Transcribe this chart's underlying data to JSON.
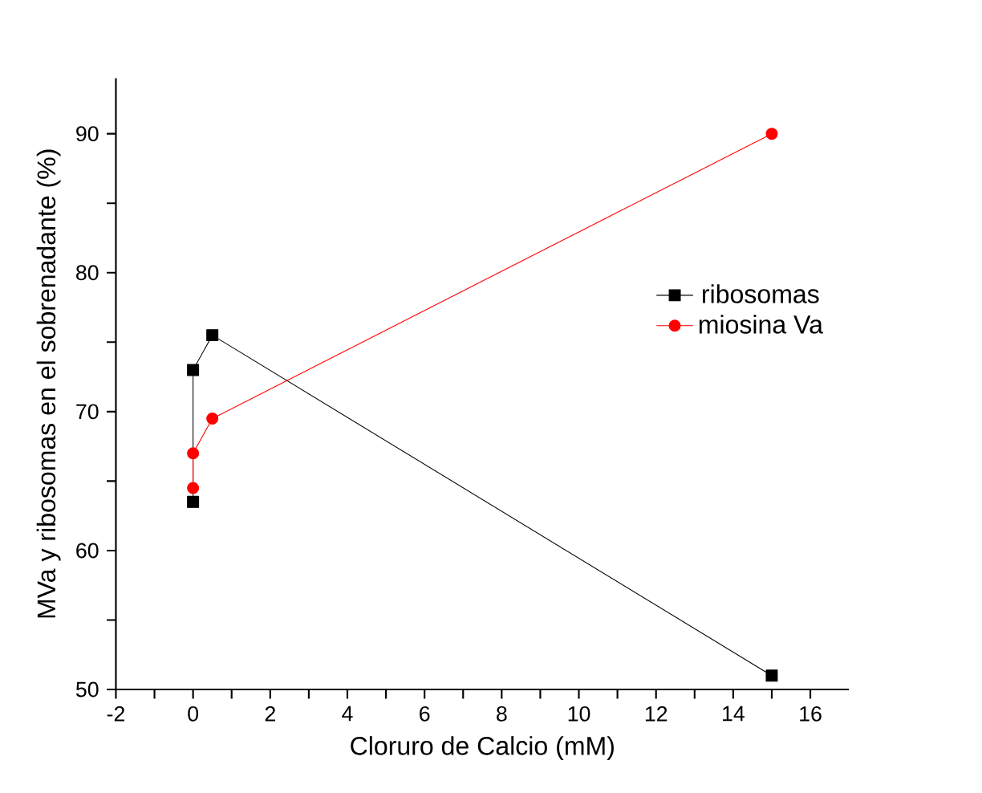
{
  "chart_data": {
    "type": "line",
    "xlabel": "Cloruro de Calcio (mM)",
    "ylabel": "MVa y ribosomas en el sobrenadante (%)",
    "xlim": [
      -2,
      17
    ],
    "ylim": [
      50,
      94
    ],
    "xticks": [
      -2,
      {
        "value": -1,
        "label": null
      },
      0,
      {
        "value": 1,
        "label": null
      },
      2,
      {
        "value": 3,
        "label": null
      },
      4,
      {
        "value": 5,
        "label": null
      },
      6,
      {
        "value": 7,
        "label": null
      },
      8,
      {
        "value": 9,
        "label": null
      },
      10,
      {
        "value": 11,
        "label": null
      },
      12,
      {
        "value": 13,
        "label": null
      },
      14,
      {
        "value": 15,
        "label": null
      },
      16
    ],
    "yticks": [
      50,
      {
        "value": 55,
        "label": null
      },
      60,
      {
        "value": 65,
        "label": null
      },
      70,
      {
        "value": 75,
        "label": null
      },
      80,
      {
        "value": 85,
        "label": null
      },
      90
    ],
    "legend": "right",
    "grid": false,
    "series": [
      {
        "name": "ribosomas",
        "color": "#000000",
        "marker": "square",
        "x": [
          0,
          0,
          0.5,
          15
        ],
        "values": [
          63.5,
          73,
          75.5,
          51
        ]
      },
      {
        "name": "miosina Va",
        "color": "#ff0000",
        "marker": "circle",
        "x": [
          0,
          0,
          0.5,
          15
        ],
        "values": [
          64.5,
          67,
          69.5,
          90
        ]
      }
    ]
  }
}
